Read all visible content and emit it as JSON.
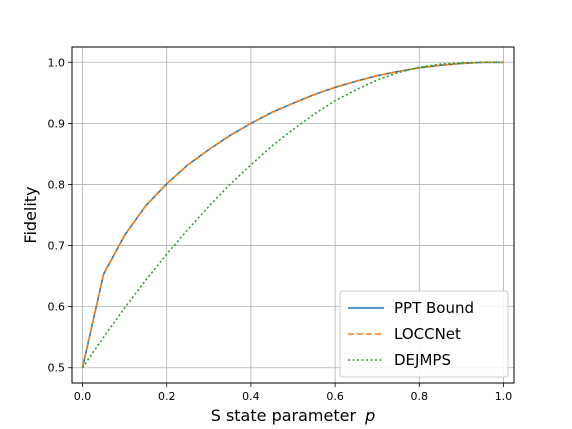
{
  "chart_data": {
    "type": "line",
    "xlabel": "S state parameter",
    "xlabel_var": "p",
    "ylabel": "Fidelity",
    "xlim": [
      -0.025,
      1.025
    ],
    "ylim": [
      0.475,
      1.025
    ],
    "xticks": [
      0.0,
      0.2,
      0.4,
      0.6,
      0.8,
      1.0
    ],
    "xtick_labels": [
      "0.0",
      "0.2",
      "0.4",
      "0.6",
      "0.8",
      "1.0"
    ],
    "yticks": [
      0.5,
      0.6,
      0.7,
      0.8,
      0.9,
      1.0
    ],
    "ytick_labels": [
      "0.5",
      "0.6",
      "0.7",
      "0.8",
      "0.9",
      "1.0"
    ],
    "grid": true,
    "legend_position": "lower-right",
    "series": [
      {
        "name": "PPT Bound",
        "color": "#1f77b4",
        "style": "solid",
        "x": [
          0.0,
          0.05,
          0.1,
          0.15,
          0.2,
          0.25,
          0.3,
          0.35,
          0.4,
          0.45,
          0.5,
          0.55,
          0.6,
          0.65,
          0.7,
          0.75,
          0.8,
          0.85,
          0.9,
          0.95,
          1.0
        ],
        "y": [
          0.5,
          0.653,
          0.717,
          0.765,
          0.801,
          0.832,
          0.857,
          0.88,
          0.9,
          0.918,
          0.933,
          0.947,
          0.959,
          0.969,
          0.978,
          0.985,
          0.991,
          0.995,
          0.998,
          1.0,
          1.0
        ]
      },
      {
        "name": "LOCCNet",
        "color": "#ff7f0e",
        "style": "dashed",
        "x": [
          0.0,
          0.05,
          0.1,
          0.15,
          0.2,
          0.25,
          0.3,
          0.35,
          0.4,
          0.45,
          0.5,
          0.55,
          0.6,
          0.65,
          0.7,
          0.75,
          0.8,
          0.85,
          0.9,
          0.95,
          1.0
        ],
        "y": [
          0.5,
          0.653,
          0.717,
          0.765,
          0.801,
          0.832,
          0.857,
          0.88,
          0.9,
          0.918,
          0.933,
          0.947,
          0.959,
          0.969,
          0.978,
          0.985,
          0.991,
          0.995,
          0.998,
          1.0,
          1.0
        ]
      },
      {
        "name": "DEJMPS",
        "color": "#2ca02c",
        "style": "dotted",
        "x": [
          0.0,
          0.05,
          0.1,
          0.15,
          0.2,
          0.25,
          0.3,
          0.35,
          0.4,
          0.45,
          0.5,
          0.55,
          0.6,
          0.65,
          0.7,
          0.75,
          0.8,
          0.85,
          0.9,
          0.95,
          1.0
        ],
        "y": [
          0.5,
          0.55,
          0.598,
          0.643,
          0.686,
          0.726,
          0.764,
          0.8,
          0.832,
          0.863,
          0.89,
          0.915,
          0.937,
          0.955,
          0.971,
          0.983,
          0.992,
          0.997,
          0.999,
          1.0,
          1.0
        ]
      }
    ]
  }
}
